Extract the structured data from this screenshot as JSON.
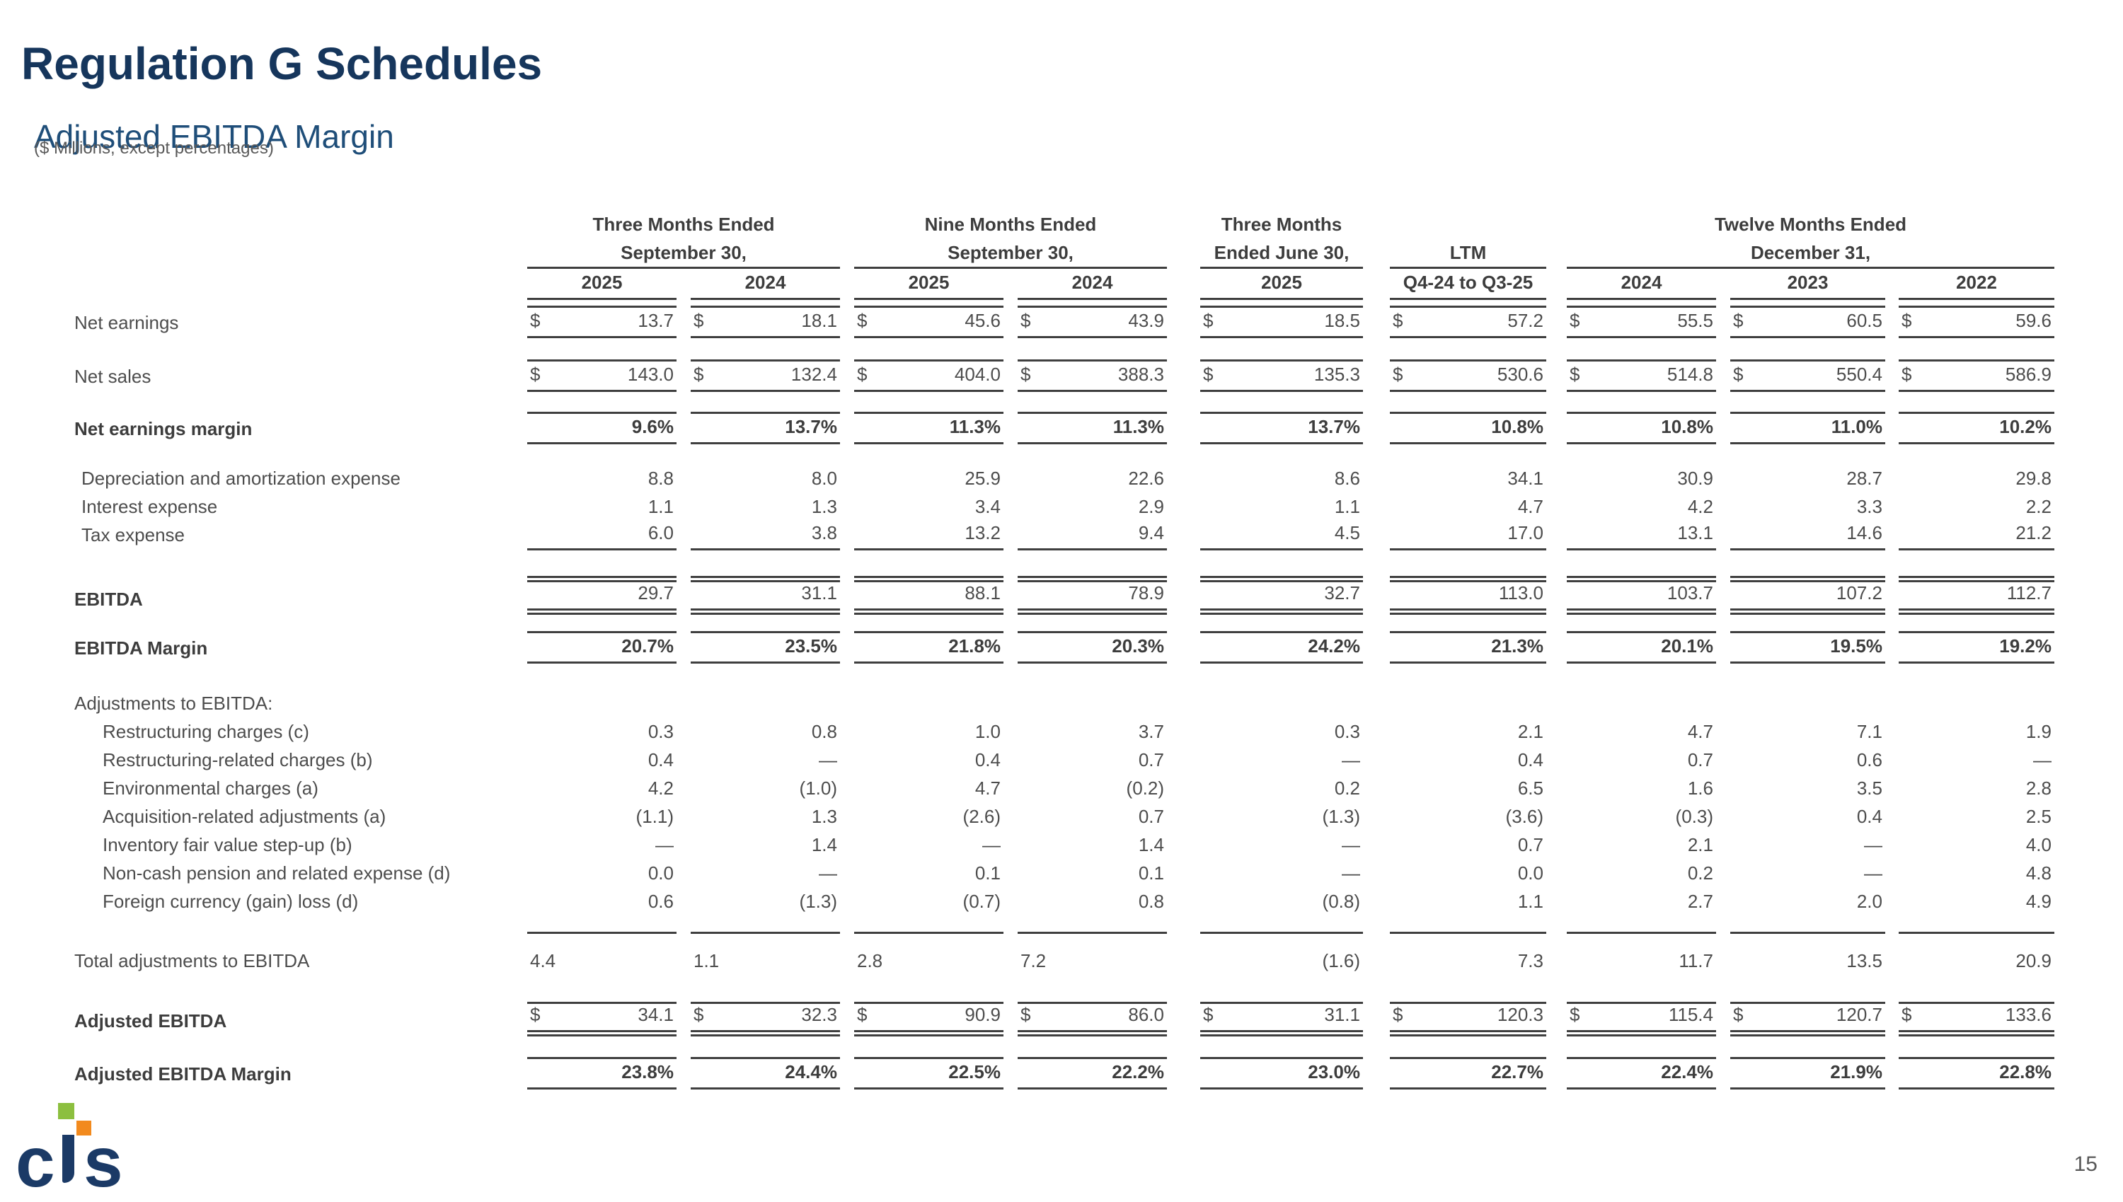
{
  "page": {
    "title": "Regulation G Schedules",
    "subtitle": "Adjusted EBITDA Margin",
    "note": "($ Millions, except percentages)",
    "page_number": "15"
  },
  "logo": {
    "c": "c",
    "s": "s"
  },
  "colors": {
    "title_navy": "#16365C",
    "subtitle_navy": "#1F4E79",
    "note_gray": "#595959",
    "text": "#4d4d4d",
    "text_bold": "#3d3d3d",
    "line": "#3f3f3f",
    "logo_navy": "#1B3A66",
    "logo_green": "#8CBF3F",
    "logo_orange": "#F28A1E"
  },
  "table": {
    "dollar_sign": "$",
    "column_groups": [
      {
        "lines": [
          "Three Months Ended",
          "September 30,"
        ]
      },
      {
        "lines": [
          "Nine Months Ended",
          "September 30,"
        ]
      },
      {
        "lines": [
          "Three Months",
          "Ended June 30,"
        ]
      },
      {
        "lines": [
          "",
          "LTM"
        ]
      },
      {
        "lines": [
          "Twelve Months Ended",
          "December 31,"
        ]
      }
    ],
    "years": [
      "2025",
      "2024",
      "2025",
      "2024",
      "2025",
      "Q4-24 to Q3-25",
      "2024",
      "2023",
      "2022"
    ],
    "rows": [
      {
        "type": "spacer",
        "h": 8
      },
      {
        "type": "data",
        "key": "net-earnings",
        "label": "Net earnings",
        "dollar": true,
        "border": "tb",
        "values": [
          "13.7",
          "18.1",
          "45.6",
          "43.9",
          "18.5",
          "57.2",
          "55.5",
          "60.5",
          "59.6"
        ]
      },
      {
        "type": "spacer",
        "h": 30
      },
      {
        "type": "data",
        "key": "net-sales",
        "label": "Net sales",
        "dollar": true,
        "border": "tb",
        "values": [
          "143.0",
          "132.4",
          "404.0",
          "388.3",
          "135.3",
          "530.6",
          "514.8",
          "550.4",
          "586.9"
        ]
      },
      {
        "type": "spacer",
        "h": 28
      },
      {
        "type": "data",
        "key": "net-earnings-margin",
        "label": "Net earnings margin",
        "lb": 1,
        "vb": 1,
        "border": "tb",
        "values": [
          "9.6%",
          "13.7%",
          "11.3%",
          "11.3%",
          "13.7%",
          "10.8%",
          "10.8%",
          "11.0%",
          "10.2%"
        ]
      },
      {
        "type": "spacer",
        "h": 30
      },
      {
        "type": "data",
        "key": "depreciation-amortization-expense",
        "label": "Depreciation and amortization expense",
        "ind": 10,
        "h": 40,
        "values": [
          "8.8",
          "8.0",
          "25.9",
          "22.6",
          "8.6",
          "34.1",
          "30.9",
          "28.7",
          "29.8"
        ]
      },
      {
        "type": "data",
        "key": "interest-expense",
        "label": "Interest expense",
        "ind": 10,
        "h": 40,
        "values": [
          "1.1",
          "1.3",
          "3.4",
          "2.9",
          "1.1",
          "4.7",
          "4.2",
          "3.3",
          "2.2"
        ]
      },
      {
        "type": "data",
        "key": "tax-expense",
        "label": "Tax expense",
        "ind": 10,
        "h": 40,
        "border": "bb",
        "values": [
          "6.0",
          "3.8",
          "13.2",
          "9.4",
          "4.5",
          "17.0",
          "13.1",
          "14.6",
          "21.2"
        ]
      },
      {
        "type": "spacer",
        "h": 36
      },
      {
        "type": "data",
        "key": "ebitda",
        "label": "EBITDA",
        "lb": 1,
        "border": "t2b2",
        "values": [
          "29.7",
          "31.1",
          "88.1",
          "78.9",
          "32.7",
          "113.0",
          "103.7",
          "107.2",
          "112.7"
        ]
      },
      {
        "type": "spacer",
        "h": 32
      },
      {
        "type": "data",
        "key": "ebitda-margin",
        "label": "EBITDA Margin",
        "lb": 1,
        "vb": 1,
        "border": "tb",
        "values": [
          "20.7%",
          "23.5%",
          "21.8%",
          "20.3%",
          "24.2%",
          "21.3%",
          "20.1%",
          "19.5%",
          "19.2%"
        ]
      },
      {
        "type": "spacer",
        "h": 40
      },
      {
        "type": "data",
        "key": "adjustments-to-ebitda-header",
        "label": "Adjustments to EBITDA:",
        "h": 38
      },
      {
        "type": "data",
        "key": "restructuring-charges",
        "label": "Restructuring charges (c)",
        "ind": 40,
        "h": 40,
        "values": [
          "0.3",
          "0.8",
          "1.0",
          "3.7",
          "0.3",
          "2.1",
          "4.7",
          "7.1",
          "1.9"
        ]
      },
      {
        "type": "data",
        "key": "restructuring-related-charges",
        "label": "Restructuring-related charges (b)",
        "ind": 40,
        "h": 40,
        "values": [
          "0.4",
          "—",
          "0.4",
          "0.7",
          "—",
          "0.4",
          "0.7",
          "0.6",
          "—"
        ]
      },
      {
        "type": "data",
        "key": "environmental-charges",
        "label": "Environmental charges (a)",
        "ind": 40,
        "h": 40,
        "values": [
          "4.2",
          "(1.0)",
          "4.7",
          "(0.2)",
          "0.2",
          "6.5",
          "1.6",
          "3.5",
          "2.8"
        ]
      },
      {
        "type": "data",
        "key": "acquisition-related-adjustments",
        "label": "Acquisition-related adjustments (a)",
        "ind": 40,
        "h": 40,
        "values": [
          "(1.1)",
          "1.3",
          "(2.6)",
          "0.7",
          "(1.3)",
          "(3.6)",
          "(0.3)",
          "0.4",
          "2.5"
        ]
      },
      {
        "type": "data",
        "key": "inventory-fair-value-step-up",
        "label": "Inventory fair value step-up (b)",
        "ind": 40,
        "h": 40,
        "values": [
          "—",
          "1.4",
          "—",
          "1.4",
          "—",
          "0.7",
          "2.1",
          "—",
          "4.0"
        ]
      },
      {
        "type": "data",
        "key": "non-cash-pension",
        "label": "Non-cash pension and related expense (d)",
        "ind": 40,
        "h": 40,
        "values": [
          "0.0",
          "—",
          "0.1",
          "0.1",
          "—",
          "0.0",
          "0.2",
          "—",
          "4.8"
        ]
      },
      {
        "type": "data",
        "key": "foreign-currency-gain-loss",
        "label": "Foreign currency (gain) loss (d)",
        "ind": 40,
        "h": 40,
        "values": [
          "0.6",
          "(1.3)",
          "(0.7)",
          "0.8",
          "(0.8)",
          "1.1",
          "2.7",
          "2.0",
          "4.9"
        ]
      },
      {
        "type": "spacer",
        "h": 24,
        "line": true
      },
      {
        "type": "spacer",
        "h": 20
      },
      {
        "type": "data",
        "key": "total-adjustments-to-ebitda",
        "label": "Total adjustments to EBITDA",
        "h": 40,
        "quirk": true,
        "values": [
          "4.4",
          "1.1",
          "2.8",
          "7.2",
          "(1.6)",
          "7.3",
          "11.7",
          "13.5",
          "20.9"
        ]
      },
      {
        "type": "spacer",
        "h": 36
      },
      {
        "type": "data",
        "key": "adjusted-ebitda",
        "label": "Adjusted EBITDA",
        "lb": 1,
        "dollar": true,
        "border": "tb2",
        "values": [
          "34.1",
          "32.3",
          "90.9",
          "86.0",
          "31.1",
          "120.3",
          "115.4",
          "120.7",
          "133.6"
        ]
      },
      {
        "type": "spacer",
        "h": 32
      },
      {
        "type": "data",
        "key": "adjusted-ebitda-margin",
        "label": "Adjusted EBITDA Margin",
        "lb": 1,
        "vb": 1,
        "border": "tb",
        "values": [
          "23.8%",
          "24.4%",
          "22.5%",
          "22.2%",
          "23.0%",
          "22.7%",
          "22.4%",
          "21.9%",
          "22.8%"
        ]
      }
    ]
  }
}
